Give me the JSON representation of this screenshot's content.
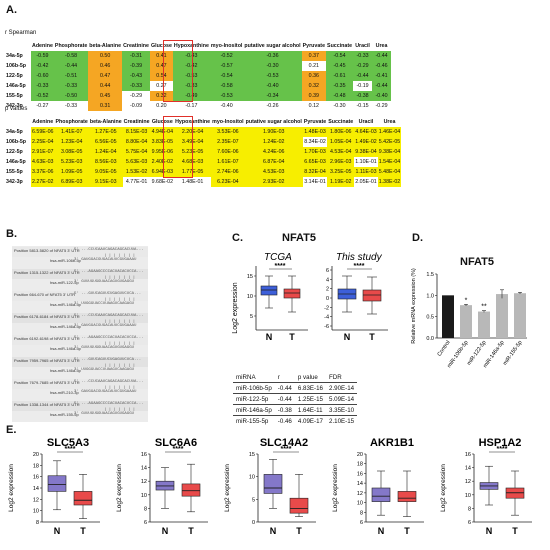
{
  "panels": {
    "A": "A.",
    "B": "B.",
    "C": "C.",
    "D": "D.",
    "E": "E."
  },
  "heatmap": {
    "r_title": "r Spearman",
    "p_title": "p values",
    "columns": [
      "Adenine",
      "Phosphorate",
      "beta-Alanine",
      "Creatinine",
      "Glucose",
      "Hypoxanthine",
      "myo-Inositol",
      "putative sugar alcohol",
      "Pyruvate",
      "Succinate",
      "Uracil",
      "Urea"
    ],
    "rows": [
      "34a-5p",
      "106b-5p",
      "122-5p",
      "146a-5p",
      "155-5p",
      "342-3p"
    ],
    "r_values": [
      [
        "-0.59",
        "-0.58",
        "0.50",
        "-0.31",
        "0.41",
        "-0.43",
        "-0.52",
        "-0.36",
        "0.37",
        "-0.54",
        "-0.33",
        "-0.44"
      ],
      [
        "-0.42",
        "-0.44",
        "0.46",
        "-0.39",
        "0.47",
        "-0.42",
        "-0.57",
        "-0.30",
        "0.21",
        "-0.45",
        "-0.29",
        "-0.46"
      ],
      [
        "-0.60",
        "-0.51",
        "0.47",
        "-0.43",
        "0.54",
        "-0.53",
        "-0.54",
        "-0.53",
        "0.36",
        "-0.61",
        "-0.44",
        "-0.41"
      ],
      [
        "-0.33",
        "-0.33",
        "0.44",
        "-0.33",
        "0.27",
        "-0.33",
        "-0.58",
        "-0.40",
        "0.32",
        "-0.35",
        "-0.19",
        "-0.44"
      ],
      [
        "-0.52",
        "-0.50",
        "0.45",
        "-0.29",
        "0.32",
        "-0.49",
        "-0.53",
        "-0.34",
        "0.39",
        "-0.48",
        "-0.38",
        "-0.40"
      ],
      [
        "-0.27",
        "-0.33",
        "0.31",
        "-0.09",
        "0.20",
        "-0.17",
        "-0.40",
        "-0.26",
        "0.12",
        "-0.30",
        "-0.15",
        "-0.29"
      ]
    ],
    "r_colors": [
      [
        "g",
        "g",
        "o",
        "g",
        "o",
        "g",
        "g",
        "g",
        "o",
        "g",
        "g",
        "g"
      ],
      [
        "g",
        "g",
        "o",
        "g",
        "o",
        "g",
        "g",
        "g",
        "w",
        "g",
        "g",
        "g"
      ],
      [
        "g",
        "g",
        "o",
        "g",
        "o",
        "g",
        "g",
        "g",
        "o",
        "g",
        "g",
        "g"
      ],
      [
        "g",
        "g",
        "o",
        "g",
        "w",
        "g",
        "g",
        "g",
        "o",
        "g",
        "w",
        "g"
      ],
      [
        "g",
        "g",
        "o",
        "w",
        "o",
        "g",
        "g",
        "g",
        "o",
        "g",
        "g",
        "g"
      ],
      [
        "w",
        "w",
        "o",
        "w",
        "w",
        "w",
        "w",
        "w",
        "w",
        "w",
        "w",
        "w"
      ]
    ],
    "p_values": [
      [
        "6.59E-06",
        "1.41E-07",
        "1.27E-05",
        "8.15E-03",
        "4.94E-04",
        "2.20E-04",
        "3.53E-06",
        "1.90E-03",
        "1.48E-03",
        "1.80E-06",
        "4.64E-03",
        "1.46E-04"
      ],
      [
        "2.25E-04",
        "1.23E-04",
        "6.56E-05",
        "8.80E-04",
        "3.83E-05",
        "3.49E-04",
        "2.35E-07",
        "1.24E-02",
        "8.34E-02",
        "1.05E-04",
        "1.49E-02",
        "5.42E-05"
      ],
      [
        "2.91E-07",
        "3.08E-05",
        "1.24E-04",
        "5.75E-04",
        "9.95E-06",
        "5.23E-05",
        "7.60E-06",
        "4.24E-06",
        "1.70E-03",
        "4.53E-04",
        "9.38E-04",
        "9.38E-04"
      ],
      [
        "4.63E-03",
        "5.23E-03",
        "8.56E-03",
        "5.63E-03",
        "2.40E-02",
        "4.68E-03",
        "1.61E-07",
        "6.87E-04",
        "6.65E-03",
        "2.96E-03",
        "1.10E-01",
        "1.54E-04"
      ],
      [
        "3.37E-06",
        "1.09E-05",
        "9.05E-05",
        "1.53E-02",
        "6.94E-03",
        "1.77E-05",
        "2.74E-06",
        "4.53E-03",
        "8.32E-04",
        "3.25E-05",
        "1.11E-03",
        "5.48E-04"
      ],
      [
        "2.27E-02",
        "6.89E-03",
        "9.15E-03",
        "4.77E-01",
        "9.68E-02",
        "1.48E-01",
        "6.23E-04",
        "2.93E-02",
        "3.14E-01",
        "1.19E-02",
        "2.05E-01",
        "1.38E-02"
      ]
    ],
    "p_colors": [
      [
        "y",
        "y",
        "y",
        "y",
        "y",
        "y",
        "y",
        "y",
        "y",
        "y",
        "y",
        "y"
      ],
      [
        "y",
        "y",
        "y",
        "y",
        "y",
        "y",
        "y",
        "y",
        "w",
        "y",
        "y",
        "y"
      ],
      [
        "y",
        "y",
        "y",
        "y",
        "y",
        "y",
        "y",
        "y",
        "y",
        "y",
        "y",
        "y"
      ],
      [
        "y",
        "y",
        "y",
        "y",
        "y",
        "y",
        "y",
        "y",
        "y",
        "y",
        "w",
        "y"
      ],
      [
        "y",
        "y",
        "y",
        "y",
        "y",
        "y",
        "y",
        "y",
        "y",
        "y",
        "y",
        "y"
      ],
      [
        "y",
        "y",
        "y",
        "w",
        "w",
        "w",
        "y",
        "y",
        "w",
        "y",
        "w",
        "y"
      ]
    ],
    "highlight_col": 6,
    "green": "#66c24a",
    "orange": "#f5a623",
    "yellow": "#f7ee00",
    "highlight": "#e0302a"
  },
  "alignments": [
    {
      "pos": "Position 5813-5820 of NFAT5 3' UTR",
      "mir": "hsa-miR-106b-5p"
    },
    {
      "pos": "Position 1315-1322 of NFAT5 3' UTR",
      "mir": "hsa-miR-122-5p"
    },
    {
      "pos": "Position 664-670 of NFAT5 3' UTR",
      "mir": "hsa-miR-146a-5p"
    },
    {
      "pos": "Position 6178-6184 of NFAT5 3' UTR",
      "mir": "hsa-miR-146a-5p"
    },
    {
      "pos": "Position 6192-6198 of NFAT5 3' UTR",
      "mir": "hsa-miR-146a-5p"
    },
    {
      "pos": "Position 7959-7965 of NFAT5 3' UTR",
      "mir": "hsa-miR-146a-5p"
    },
    {
      "pos": "Position 7679-7685 of NFAT5 3' UTR",
      "mir": "hsa-miR-210-3p"
    },
    {
      "pos": "Position 1338-1344 of NFAT5 3' UTR",
      "mir": "hsa-miR-155-5p"
    }
  ],
  "panelC": {
    "title": "NFAT5",
    "left_title": "TCGA",
    "right_title": "This study",
    "ylabel": "Log2 expression",
    "sig": "****",
    "left_ticks": [
      "15",
      "10",
      "5"
    ],
    "right_ticks": [
      "6",
      "4",
      "2",
      "0",
      "-2",
      "-4",
      "-6"
    ],
    "groups": [
      "N",
      "T"
    ],
    "table_header": [
      "miRNA",
      "r",
      "p value",
      "FDR"
    ],
    "table_rows": [
      [
        "miR-106b-5p",
        "-0.44",
        "6.83E-16",
        "2.90E-14"
      ],
      [
        "miR-122-5p",
        "-0.44",
        "1.25E-15",
        "5.09E-14"
      ],
      [
        "miR-146a-5p",
        "-0.38",
        "1.64E-11",
        "3.35E-10"
      ],
      [
        "miR-155-5p",
        "-0.46",
        "4.09E-17",
        "2.10E-15"
      ]
    ]
  },
  "panelD": {
    "title": "NFAT5",
    "ylabel": "Relative mRNA expression (%)",
    "ticks": [
      "1.5",
      "1.0",
      "0.5",
      "0.0"
    ],
    "chart_data": {
      "type": "bar",
      "categories": [
        "Control",
        "miR-106b-5p",
        "miR-122-5p",
        "miR-146a-5p",
        "miR-155-5p"
      ],
      "values": [
        1.0,
        0.77,
        0.62,
        1.03,
        1.05
      ],
      "errors": [
        0.0,
        0.02,
        0.02,
        0.1,
        0.02
      ],
      "annotations": [
        "",
        "*",
        "**",
        "",
        ""
      ],
      "ylabel": "Relative mRNA expression (%)",
      "ylim": [
        0,
        1.5
      ]
    }
  },
  "panelE": {
    "ylabel": "Log2 expression",
    "sig": "****",
    "groups": [
      "N",
      "T"
    ],
    "genes": [
      {
        "name": "SLC5A3",
        "ticks": [
          "20",
          "18",
          "16",
          "14",
          "12",
          "10",
          "8"
        ],
        "sig": true,
        "N": {
          "min": 0.18,
          "q1": 0.45,
          "med": 0.55,
          "q3": 0.68,
          "max": 0.9
        },
        "T": {
          "min": 0.05,
          "q1": 0.25,
          "med": 0.32,
          "q3": 0.45,
          "max": 0.7
        }
      },
      {
        "name": "SLC6A6",
        "ticks": [
          "16",
          "14",
          "12",
          "10",
          "8",
          "6"
        ],
        "sig": true,
        "N": {
          "min": 0.2,
          "q1": 0.47,
          "med": 0.53,
          "q3": 0.6,
          "max": 0.8
        },
        "T": {
          "min": 0.15,
          "q1": 0.38,
          "med": 0.46,
          "q3": 0.56,
          "max": 0.85
        }
      },
      {
        "name": "SLC14A2",
        "ticks": [
          "15",
          "10",
          "5",
          "0"
        ],
        "sig": true,
        "N": {
          "min": 0.2,
          "q1": 0.42,
          "med": 0.5,
          "q3": 0.7,
          "max": 0.92
        },
        "T": {
          "min": 0.08,
          "q1": 0.13,
          "med": 0.2,
          "q3": 0.35,
          "max": 0.7
        }
      },
      {
        "name": "AKR1B1",
        "ticks": [
          "20",
          "18",
          "16",
          "14",
          "12",
          "10",
          "8",
          "6"
        ],
        "sig": false,
        "N": {
          "min": 0.1,
          "q1": 0.3,
          "med": 0.38,
          "q3": 0.5,
          "max": 0.75
        },
        "T": {
          "min": 0.08,
          "q1": 0.3,
          "med": 0.35,
          "q3": 0.45,
          "max": 0.75
        }
      },
      {
        "name": "HSP1A2",
        "ticks": [
          "16",
          "14",
          "12",
          "10",
          "8",
          "6"
        ],
        "sig": true,
        "N": {
          "min": 0.25,
          "q1": 0.48,
          "med": 0.53,
          "q3": 0.58,
          "max": 0.82
        },
        "T": {
          "min": 0.1,
          "q1": 0.35,
          "med": 0.43,
          "q3": 0.5,
          "max": 0.75
        }
      }
    ]
  },
  "colors": {
    "normal_box": "#8478c9",
    "tumor_box": "#e84a4a",
    "c_normal": "#3d5fd9",
    "c_tumor": "#e84a4a",
    "bar_control": "#1a1a1a",
    "bar_other": "#b8b8b8"
  }
}
